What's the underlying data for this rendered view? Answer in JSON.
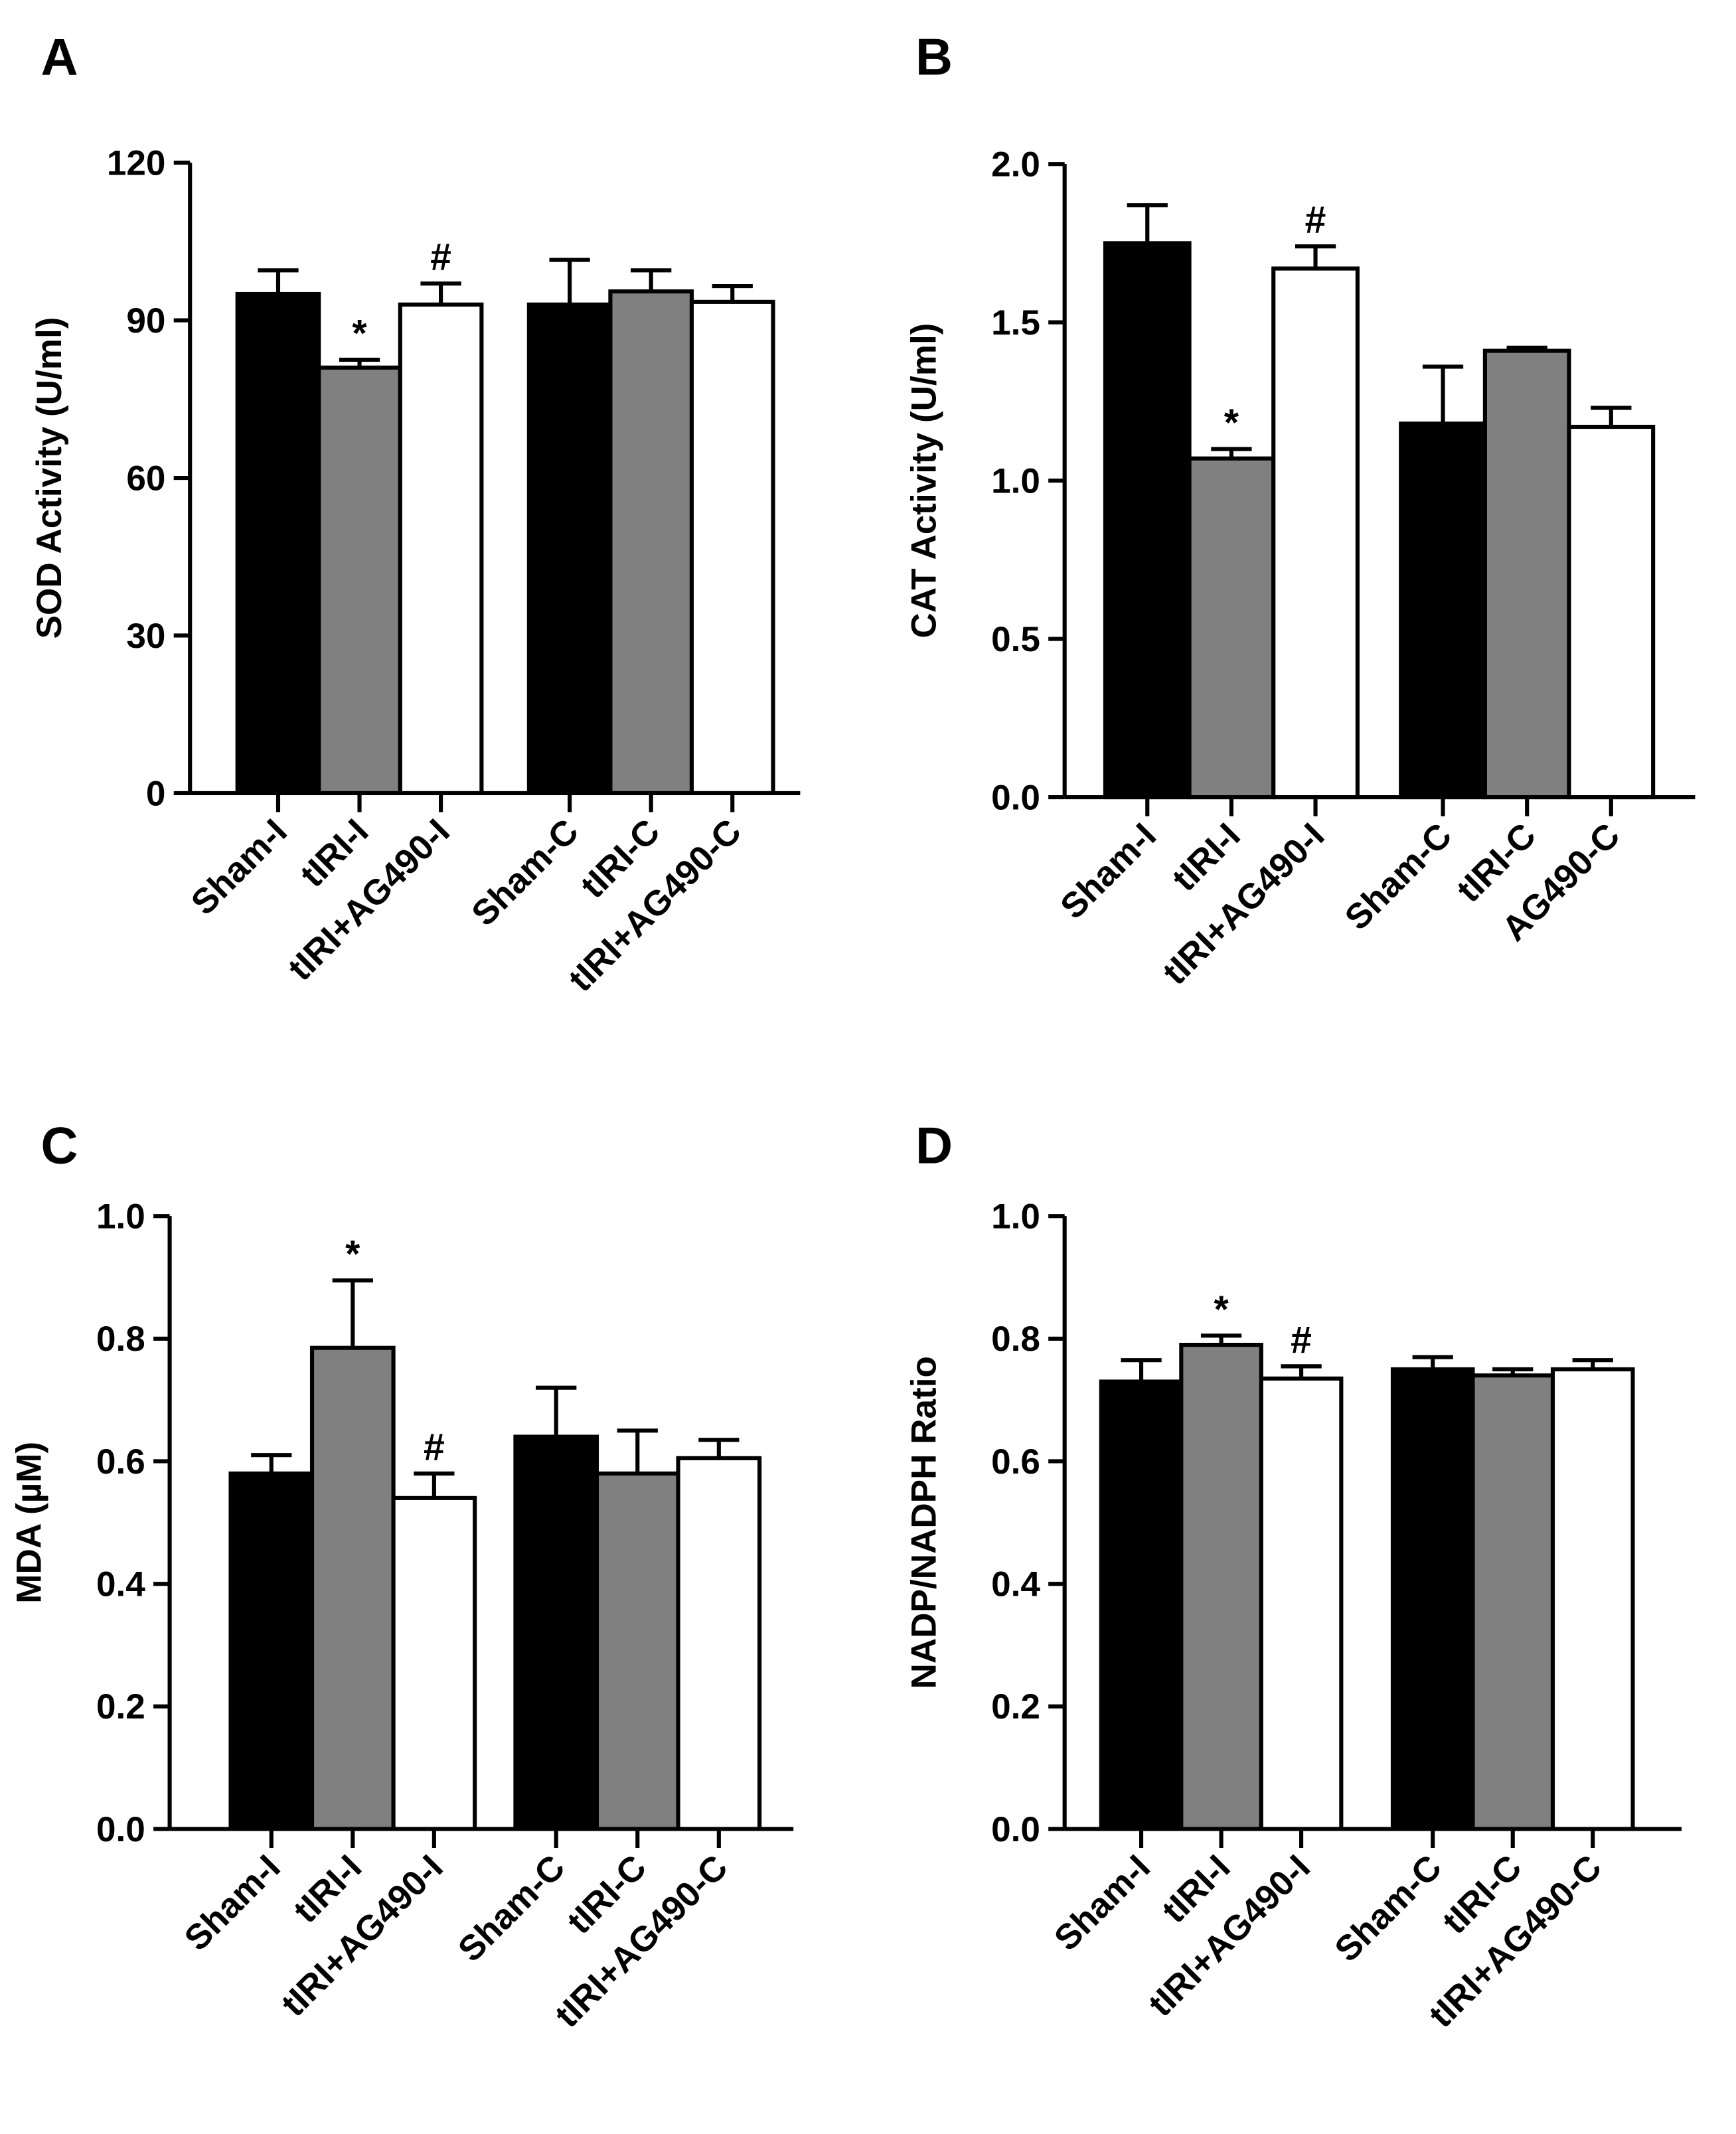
{
  "chart_data": [
    {
      "type": "bar",
      "title": "A",
      "ylabel": "SOD Activity (U/ml)",
      "categories": [
        "Sham-I",
        "tIRI-I",
        "tIRI+AG490-I",
        "Sham-C",
        "tIRI-C",
        "tIRI+AG490-C"
      ],
      "values": [
        95,
        81,
        93,
        93,
        95.5,
        93.5
      ],
      "errors": [
        4.5,
        1.5,
        4,
        8.5,
        4,
        3
      ],
      "annotations": [
        null,
        "*",
        "#",
        null,
        null,
        null
      ],
      "colors": [
        "#000000",
        "#808080",
        "#ffffff",
        "#000000",
        "#808080",
        "#ffffff"
      ],
      "ylim": [
        0,
        120
      ],
      "yticks": [
        0,
        30,
        60,
        90,
        120
      ]
    },
    {
      "type": "bar",
      "title": "B",
      "ylabel": "CAT Activity (U/ml)",
      "categories": [
        "Sham-I",
        "tIRI-I",
        "tIRI+AG490-I",
        "Sham-C",
        "tIRI-C",
        "AG490-C"
      ],
      "values": [
        1.75,
        1.07,
        1.67,
        1.18,
        1.41,
        1.17
      ],
      "errors": [
        0.12,
        0.03,
        0.07,
        0.18,
        0.01,
        0.06
      ],
      "annotations": [
        null,
        "*",
        "#",
        null,
        null,
        null
      ],
      "colors": [
        "#000000",
        "#808080",
        "#ffffff",
        "#000000",
        "#808080",
        "#ffffff"
      ],
      "ylim": [
        0,
        2
      ],
      "yticks": [
        {
          "value": 0,
          "label": "0.0"
        },
        0.5,
        {
          "value": 1,
          "label": "1.0"
        },
        1.5,
        {
          "value": 2,
          "label": "2.0"
        }
      ]
    },
    {
      "type": "bar",
      "title": "C",
      "ylabel": "MDA (µM)",
      "categories": [
        "Sham-I",
        "tIRI-I",
        "tIRI+AG490-I",
        "Sham-C",
        "tIRI-C",
        "tIRI+AG490-C"
      ],
      "values": [
        0.58,
        0.785,
        0.54,
        0.64,
        0.58,
        0.605
      ],
      "errors": [
        0.03,
        0.11,
        0.04,
        0.08,
        0.07,
        0.03
      ],
      "annotations": [
        null,
        "*",
        "#",
        null,
        null,
        null
      ],
      "colors": [
        "#000000",
        "#808080",
        "#ffffff",
        "#000000",
        "#808080",
        "#ffffff"
      ],
      "ylim": [
        0,
        1
      ],
      "yticks": [
        {
          "value": 0,
          "label": "0.0"
        },
        0.2,
        0.4,
        0.6,
        0.8,
        {
          "value": 1,
          "label": "1.0"
        }
      ]
    },
    {
      "type": "bar",
      "title": "D",
      "ylabel": "NADP/NADPH Ratio",
      "categories": [
        "Sham-I",
        "tIRI-I",
        "tIRI+AG490-I",
        "Sham-C",
        "tIRI-C",
        "tIRI+AG490-C"
      ],
      "values": [
        0.73,
        0.79,
        0.735,
        0.75,
        0.74,
        0.75
      ],
      "errors": [
        0.035,
        0.015,
        0.02,
        0.02,
        0.01,
        0.015
      ],
      "annotations": [
        null,
        "*",
        "#",
        null,
        null,
        null
      ],
      "colors": [
        "#000000",
        "#808080",
        "#ffffff",
        "#000000",
        "#808080",
        "#ffffff"
      ],
      "ylim": [
        0,
        1
      ],
      "yticks": [
        {
          "value": 0,
          "label": "0.0"
        },
        0.2,
        0.4,
        0.6,
        0.8,
        {
          "value": 1,
          "label": "1.0"
        }
      ]
    }
  ]
}
